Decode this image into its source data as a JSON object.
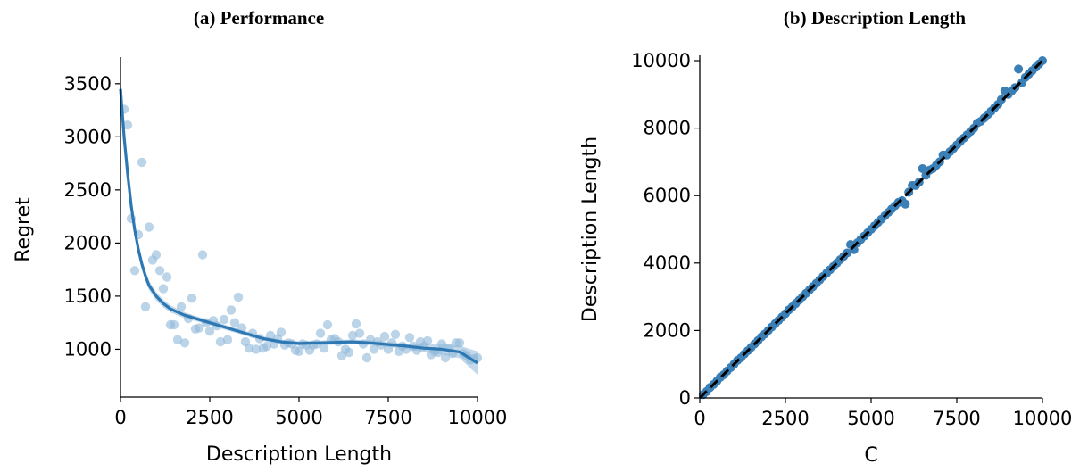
{
  "chart_data": [
    {
      "type": "scatter",
      "title": "(a) Performance",
      "xlabel": "Description Length",
      "ylabel": "Regret",
      "xlim": [
        0,
        10000
      ],
      "ylim": [
        550,
        3700
      ],
      "xticks": [
        0,
        2500,
        5000,
        7500,
        10000
      ],
      "yticks": [
        1000,
        1500,
        2000,
        2500,
        3000,
        3500
      ],
      "point_color": "#8fb8d8",
      "line_color": "#2d78b3",
      "band_color": "#a9c9e3",
      "points": [
        [
          100,
          3260
        ],
        [
          200,
          3110
        ],
        [
          300,
          2230
        ],
        [
          400,
          1740
        ],
        [
          500,
          2080
        ],
        [
          600,
          2760
        ],
        [
          700,
          1400
        ],
        [
          800,
          2150
        ],
        [
          900,
          1840
        ],
        [
          1000,
          1890
        ],
        [
          1100,
          1740
        ],
        [
          1200,
          1570
        ],
        [
          1300,
          1680
        ],
        [
          1400,
          1230
        ],
        [
          1500,
          1230
        ],
        [
          1600,
          1090
        ],
        [
          1700,
          1400
        ],
        [
          1800,
          1060
        ],
        [
          1900,
          1290
        ],
        [
          2000,
          1480
        ],
        [
          2100,
          1190
        ],
        [
          2200,
          1200
        ],
        [
          2300,
          1890
        ],
        [
          2400,
          1250
        ],
        [
          2500,
          1170
        ],
        [
          2600,
          1270
        ],
        [
          2700,
          1220
        ],
        [
          2800,
          1070
        ],
        [
          2900,
          1280
        ],
        [
          3000,
          1090
        ],
        [
          3100,
          1370
        ],
        [
          3200,
          1250
        ],
        [
          3300,
          1490
        ],
        [
          3400,
          1200
        ],
        [
          3500,
          1070
        ],
        [
          3600,
          1010
        ],
        [
          3700,
          1150
        ],
        [
          3800,
          1000
        ],
        [
          3900,
          1100
        ],
        [
          4000,
          1010
        ],
        [
          4100,
          1030
        ],
        [
          4200,
          1130
        ],
        [
          4300,
          1050
        ],
        [
          4400,
          1100
        ],
        [
          4500,
          1160
        ],
        [
          4600,
          1040
        ],
        [
          4700,
          1060
        ],
        [
          4800,
          1050
        ],
        [
          4900,
          990
        ],
        [
          5000,
          980
        ],
        [
          5100,
          1050
        ],
        [
          5200,
          1040
        ],
        [
          5300,
          990
        ],
        [
          5400,
          1040
        ],
        [
          5500,
          1050
        ],
        [
          5600,
          1150
        ],
        [
          5700,
          1010
        ],
        [
          5800,
          1230
        ],
        [
          5900,
          1090
        ],
        [
          6000,
          1100
        ],
        [
          6100,
          1070
        ],
        [
          6200,
          940
        ],
        [
          6300,
          1000
        ],
        [
          6400,
          970
        ],
        [
          6500,
          1130
        ],
        [
          6600,
          1240
        ],
        [
          6700,
          1150
        ],
        [
          6800,
          1050
        ],
        [
          6900,
          920
        ],
        [
          7000,
          1090
        ],
        [
          7100,
          1000
        ],
        [
          7200,
          1070
        ],
        [
          7300,
          1040
        ],
        [
          7400,
          1120
        ],
        [
          7500,
          1000
        ],
        [
          7600,
          1060
        ],
        [
          7700,
          1140
        ],
        [
          7800,
          980
        ],
        [
          7900,
          1030
        ],
        [
          8000,
          1000
        ],
        [
          8100,
          1110
        ],
        [
          8200,
          1030
        ],
        [
          8300,
          990
        ],
        [
          8400,
          1070
        ],
        [
          8500,
          1030
        ],
        [
          8600,
          1080
        ],
        [
          8700,
          950
        ],
        [
          8800,
          980
        ],
        [
          8900,
          970
        ],
        [
          9000,
          1050
        ],
        [
          9100,
          920
        ],
        [
          9200,
          1010
        ],
        [
          9300,
          960
        ],
        [
          9400,
          1060
        ],
        [
          9500,
          1060
        ],
        [
          9600,
          960
        ],
        [
          9700,
          940
        ],
        [
          9800,
          900
        ],
        [
          9900,
          910
        ],
        [
          10000,
          920
        ]
      ],
      "fit_line": [
        [
          0,
          3450
        ],
        [
          100,
          3000
        ],
        [
          200,
          2650
        ],
        [
          300,
          2350
        ],
        [
          400,
          2120
        ],
        [
          500,
          1940
        ],
        [
          600,
          1800
        ],
        [
          700,
          1690
        ],
        [
          800,
          1600
        ],
        [
          1000,
          1500
        ],
        [
          1200,
          1430
        ],
        [
          1400,
          1380
        ],
        [
          1600,
          1350
        ],
        [
          1800,
          1320
        ],
        [
          2000,
          1300
        ],
        [
          2500,
          1250
        ],
        [
          3000,
          1200
        ],
        [
          3500,
          1150
        ],
        [
          4000,
          1100
        ],
        [
          4500,
          1070
        ],
        [
          5000,
          1055
        ],
        [
          5500,
          1060
        ],
        [
          6000,
          1065
        ],
        [
          6500,
          1070
        ],
        [
          7000,
          1060
        ],
        [
          7500,
          1045
        ],
        [
          8000,
          1030
        ],
        [
          8500,
          1010
        ],
        [
          9000,
          1000
        ],
        [
          9500,
          975
        ],
        [
          10000,
          870
        ]
      ],
      "band_halfwidth": [
        [
          0,
          100
        ],
        [
          300,
          60
        ],
        [
          1000,
          40
        ],
        [
          2000,
          25
        ],
        [
          5000,
          20
        ],
        [
          8000,
          25
        ],
        [
          9500,
          60
        ],
        [
          10000,
          110
        ]
      ]
    },
    {
      "type": "scatter",
      "title": "(b) Description Length",
      "xlabel": "C",
      "ylabel": "Description Length",
      "xlim": [
        0,
        10000
      ],
      "ylim": [
        0,
        10000
      ],
      "xticks": [
        0,
        2500,
        5000,
        7500,
        10000
      ],
      "yticks": [
        0,
        2000,
        4000,
        6000,
        8000,
        10000
      ],
      "point_color": "#3a7fb6",
      "line_color": "#000000",
      "points": [
        [
          100,
          100
        ],
        [
          200,
          190
        ],
        [
          300,
          310
        ],
        [
          400,
          400
        ],
        [
          500,
          500
        ],
        [
          600,
          610
        ],
        [
          700,
          690
        ],
        [
          800,
          800
        ],
        [
          900,
          900
        ],
        [
          1000,
          1000
        ],
        [
          1100,
          1110
        ],
        [
          1200,
          1190
        ],
        [
          1300,
          1300
        ],
        [
          1400,
          1400
        ],
        [
          1500,
          1500
        ],
        [
          1600,
          1600
        ],
        [
          1700,
          1700
        ],
        [
          1800,
          1810
        ],
        [
          1900,
          1900
        ],
        [
          2000,
          2000
        ],
        [
          2100,
          2100
        ],
        [
          2200,
          2200
        ],
        [
          2300,
          2300
        ],
        [
          2400,
          2400
        ],
        [
          2500,
          2500
        ],
        [
          2600,
          2610
        ],
        [
          2700,
          2700
        ],
        [
          2800,
          2800
        ],
        [
          2900,
          2900
        ],
        [
          3000,
          3000
        ],
        [
          3100,
          3100
        ],
        [
          3200,
          3200
        ],
        [
          3300,
          3300
        ],
        [
          3400,
          3400
        ],
        [
          3500,
          3500
        ],
        [
          3600,
          3600
        ],
        [
          3700,
          3700
        ],
        [
          3800,
          3800
        ],
        [
          3900,
          3900
        ],
        [
          4000,
          4000
        ],
        [
          4100,
          4100
        ],
        [
          4200,
          4200
        ],
        [
          4300,
          4300
        ],
        [
          4400,
          4550
        ],
        [
          4500,
          4400
        ],
        [
          4600,
          4600
        ],
        [
          4700,
          4700
        ],
        [
          4800,
          4800
        ],
        [
          4900,
          4900
        ],
        [
          5000,
          5000
        ],
        [
          5100,
          5100
        ],
        [
          5200,
          5200
        ],
        [
          5300,
          5300
        ],
        [
          5400,
          5400
        ],
        [
          5500,
          5500
        ],
        [
          5600,
          5600
        ],
        [
          5700,
          5700
        ],
        [
          5800,
          5800
        ],
        [
          5900,
          5850
        ],
        [
          6000,
          5750
        ],
        [
          6100,
          6100
        ],
        [
          6200,
          6300
        ],
        [
          6300,
          6300
        ],
        [
          6400,
          6400
        ],
        [
          6500,
          6800
        ],
        [
          6600,
          6600
        ],
        [
          6700,
          6750
        ],
        [
          6800,
          6800
        ],
        [
          6900,
          6900
        ],
        [
          7000,
          7000
        ],
        [
          7100,
          7200
        ],
        [
          7200,
          7200
        ],
        [
          7300,
          7300
        ],
        [
          7400,
          7400
        ],
        [
          7500,
          7500
        ],
        [
          7600,
          7600
        ],
        [
          7700,
          7700
        ],
        [
          7800,
          7800
        ],
        [
          7900,
          7900
        ],
        [
          8000,
          8000
        ],
        [
          8100,
          8150
        ],
        [
          8200,
          8200
        ],
        [
          8300,
          8300
        ],
        [
          8400,
          8400
        ],
        [
          8500,
          8500
        ],
        [
          8600,
          8600
        ],
        [
          8700,
          8700
        ],
        [
          8800,
          8850
        ],
        [
          8900,
          9100
        ],
        [
          9000,
          9000
        ],
        [
          9100,
          9100
        ],
        [
          9200,
          9200
        ],
        [
          9300,
          9750
        ],
        [
          9400,
          9350
        ],
        [
          9500,
          9500
        ],
        [
          9600,
          9600
        ],
        [
          9700,
          9700
        ],
        [
          9800,
          9800
        ],
        [
          9900,
          9900
        ],
        [
          10000,
          10000
        ]
      ],
      "reference_line": [
        [
          0,
          0
        ],
        [
          10000,
          10000
        ]
      ]
    }
  ]
}
